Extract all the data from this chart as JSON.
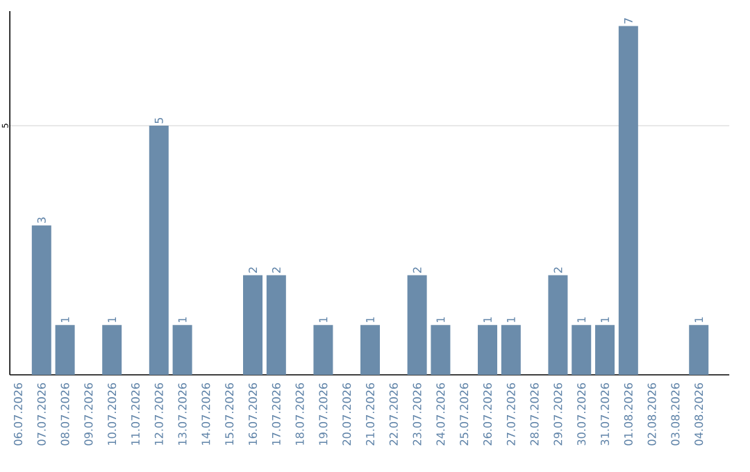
{
  "chart_data": {
    "type": "bar",
    "categories": [
      "06.07.2026",
      "07.07.2026",
      "08.07.2026",
      "09.07.2026",
      "10.07.2026",
      "11.07.2026",
      "12.07.2026",
      "13.07.2026",
      "14.07.2026",
      "15.07.2026",
      "16.07.2026",
      "17.07.2026",
      "18.07.2026",
      "19.07.2026",
      "20.07.2026",
      "21.07.2026",
      "22.07.2026",
      "23.07.2026",
      "24.07.2026",
      "25.07.2026",
      "26.07.2026",
      "27.07.2026",
      "28.07.2026",
      "29.07.2026",
      "30.07.2026",
      "31.07.2026",
      "01.08.2026",
      "02.08.2026",
      "03.08.2026",
      "04.08.2026"
    ],
    "values": [
      0,
      3,
      1,
      0,
      1,
      0,
      5,
      1,
      0,
      0,
      2,
      2,
      0,
      1,
      0,
      1,
      0,
      2,
      1,
      0,
      1,
      1,
      0,
      2,
      1,
      1,
      7,
      0,
      0,
      1
    ],
    "value_labels": [
      null,
      "3",
      "1",
      null,
      "1",
      null,
      "5",
      "1",
      null,
      null,
      "2",
      "2",
      null,
      "1",
      null,
      "1",
      null,
      "2",
      "1",
      null,
      "1",
      "1",
      null,
      "2",
      "1",
      "1",
      "7",
      null,
      null,
      "1"
    ],
    "color": "#6b8cab",
    "ylim": [
      0,
      7.3
    ],
    "yticks": [
      5
    ],
    "grid": "y"
  }
}
